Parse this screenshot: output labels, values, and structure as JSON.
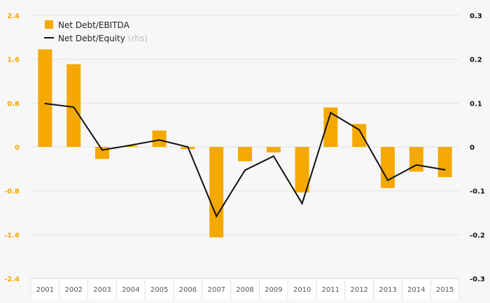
{
  "chart_data": {
    "type": "bar",
    "categories": [
      "2001",
      "2002",
      "2003",
      "2004",
      "2005",
      "2006",
      "2007",
      "2008",
      "2009",
      "2010",
      "2011",
      "2012",
      "2013",
      "2014",
      "2015"
    ],
    "series": [
      {
        "name": "Net Debt/EBITDA",
        "type": "bar",
        "axis": "left",
        "color": "#f5a800",
        "values": [
          1.78,
          1.51,
          -0.22,
          0.02,
          0.3,
          -0.04,
          -1.65,
          -0.26,
          -0.1,
          -0.83,
          0.72,
          0.42,
          -0.75,
          -0.45,
          -0.55
        ]
      },
      {
        "name": "Net Debt/Equity",
        "name_suffix": "(rhs)",
        "type": "line",
        "axis": "right",
        "color": "#111111",
        "values": [
          0.099,
          0.091,
          -0.007,
          0.004,
          0.016,
          0.0,
          -0.158,
          -0.053,
          -0.021,
          -0.129,
          0.078,
          0.039,
          -0.076,
          -0.041,
          -0.052
        ]
      }
    ],
    "y_left": {
      "ylim": [
        -2.4,
        2.4
      ],
      "ticks": [
        "2.4",
        "1.6",
        "0.8",
        "0",
        "-0.8",
        "-1.6",
        "-2.4"
      ],
      "tick_values": [
        2.4,
        1.6,
        0.8,
        0,
        -0.8,
        -1.6,
        -2.4
      ],
      "color": "#f5a800"
    },
    "y_right": {
      "ylim": [
        -0.3,
        0.3
      ],
      "ticks": [
        "0.3",
        "0.2",
        "0.1",
        "0",
        "-0.1",
        "-0.2",
        "-0.3"
      ],
      "tick_values": [
        0.3,
        0.2,
        0.1,
        0,
        -0.1,
        -0.2,
        -0.3
      ],
      "color": "#111111"
    },
    "grid": true,
    "legend_position": "top-left"
  }
}
